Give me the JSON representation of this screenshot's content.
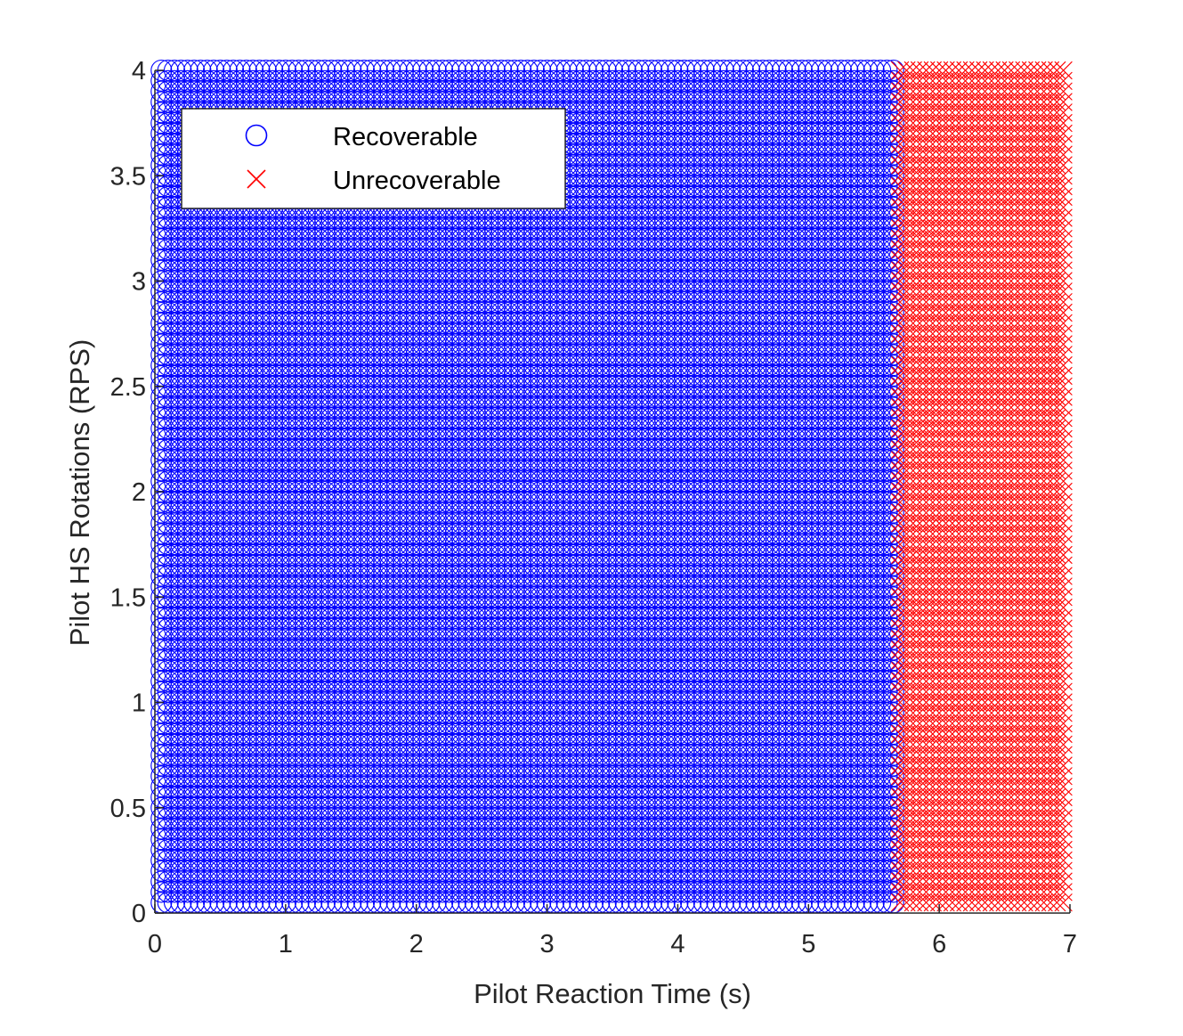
{
  "chart_data": {
    "type": "scatter",
    "title": "",
    "xlabel": "Pilot Reaction Time (s)",
    "ylabel": "Pilot HS Rotations (RPS)",
    "xlim": [
      0,
      7
    ],
    "ylim": [
      0,
      4
    ],
    "xticks": [
      0,
      1,
      2,
      3,
      4,
      5,
      6,
      7
    ],
    "xtick_labels": [
      "0",
      "1",
      "2",
      "3",
      "4",
      "5",
      "6",
      "7"
    ],
    "yticks": [
      0,
      0.5,
      1,
      1.5,
      2,
      2.5,
      3,
      3.5,
      4
    ],
    "ytick_labels": [
      "0",
      "0.5",
      "1",
      "1.5",
      "2",
      "2.5",
      "3",
      "3.5",
      "4"
    ],
    "grid": false,
    "legend_position": "top-left",
    "grid_sampling": {
      "x_start": 0.05,
      "x_end": 6.95,
      "x_step": 0.05,
      "y_start": 0.05,
      "y_end": 4.0,
      "y_step": 0.05
    },
    "series": [
      {
        "name": "Recoverable",
        "marker": "circle",
        "color": "#0000ff",
        "x_range": [
          0.05,
          5.65
        ],
        "y_range": [
          0.05,
          4.0
        ]
      },
      {
        "name": "Unrecoverable",
        "marker": "x",
        "color": "#ff0000",
        "x_range": [
          5.7,
          6.95
        ],
        "y_range": [
          0.05,
          4.0
        ]
      }
    ]
  }
}
